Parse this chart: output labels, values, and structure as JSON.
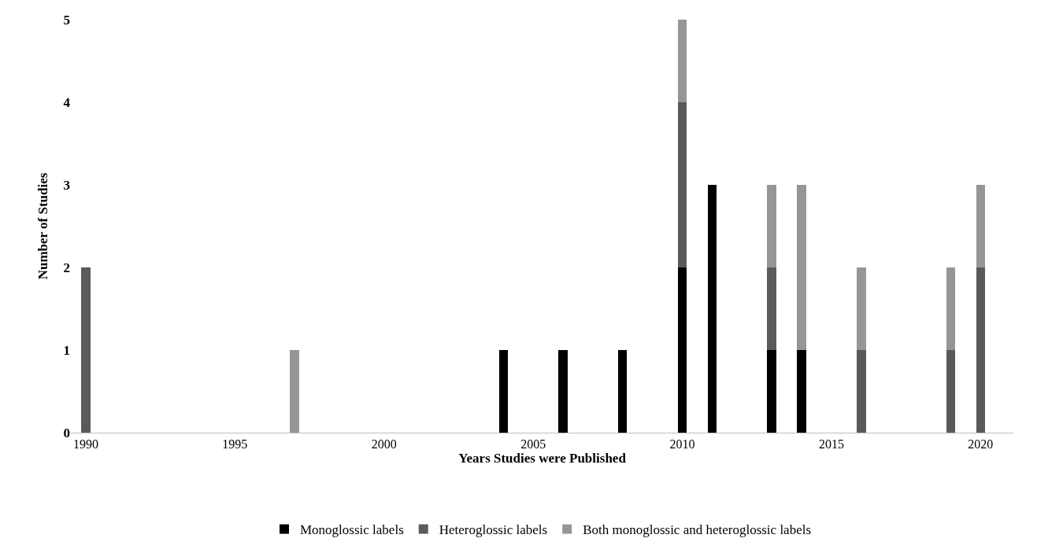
{
  "chart_data": {
    "type": "bar",
    "stacked": true,
    "xlabel": "Years Studies were Published",
    "ylabel": "Number of Studies",
    "x": [
      1990,
      1997,
      2004,
      2006,
      2008,
      2010,
      2011,
      2013,
      2014,
      2016,
      2019,
      2020
    ],
    "series": [
      {
        "name": "Monoglossic labels",
        "color": "#000000",
        "values": [
          0,
          0,
          1,
          1,
          1,
          2,
          3,
          1,
          1,
          0,
          0,
          0
        ]
      },
      {
        "name": "Heteroglossic labels",
        "color": "#5a5a5a",
        "values": [
          2,
          0,
          0,
          0,
          0,
          2,
          0,
          1,
          0,
          1,
          1,
          2
        ]
      },
      {
        "name": "Both monoglossic and heteroglossic labels",
        "color": "#969696",
        "values": [
          0,
          1,
          0,
          0,
          0,
          1,
          0,
          1,
          2,
          1,
          1,
          1
        ]
      }
    ],
    "xlim": [
      1989.5,
      2021.1
    ],
    "xticks": [
      1990,
      1995,
      2000,
      2005,
      2010,
      2015,
      2020
    ],
    "ylim": [
      0,
      5
    ],
    "yticks": [
      0,
      1,
      2,
      3,
      4,
      5
    ],
    "legend": "bottom"
  }
}
